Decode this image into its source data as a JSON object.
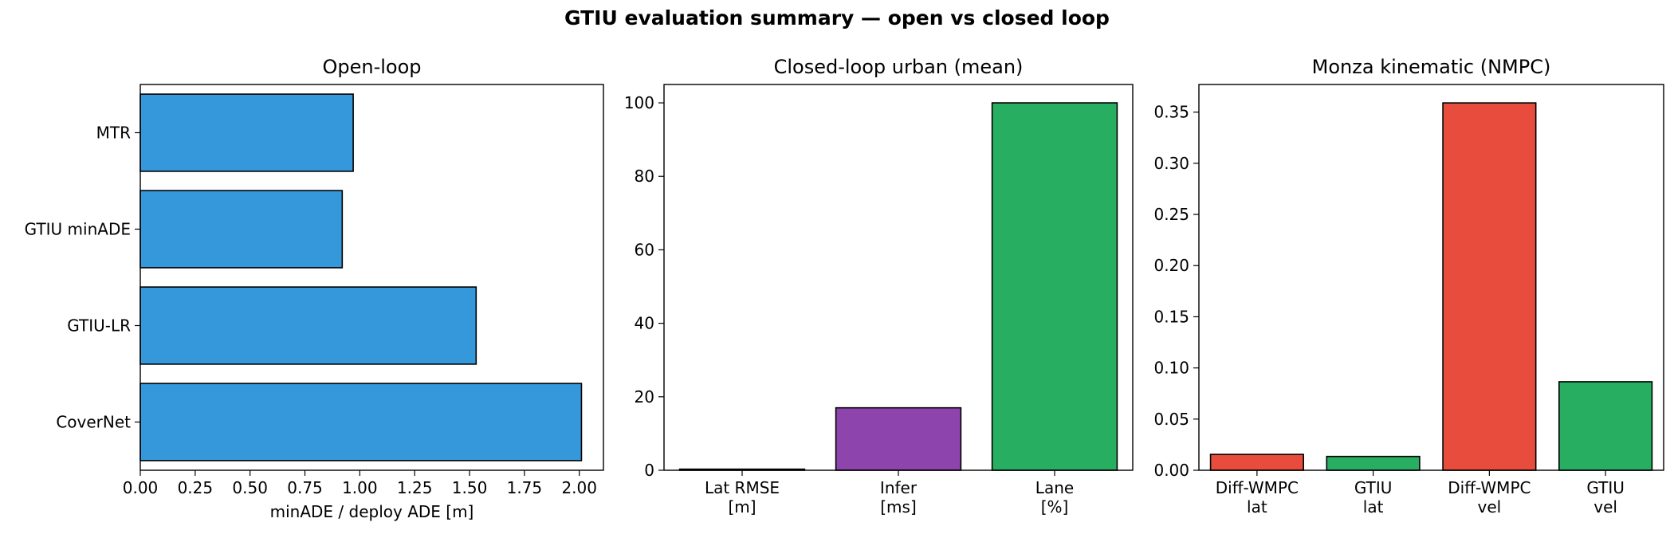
{
  "figure": {
    "suptitle": "GTIU evaluation summary — open vs closed loop"
  },
  "chart_data": [
    {
      "type": "bar",
      "orientation": "horizontal",
      "title": "Open-loop",
      "xlabel": "minADE / deploy ADE [m]",
      "ylabel": "",
      "categories": [
        "MTR",
        "GTIU minADE",
        "GTIU-LR",
        "CoverNet"
      ],
      "values": [
        0.97,
        0.92,
        1.53,
        2.01
      ],
      "colors": [
        "#3498db",
        "#3498db",
        "#3498db",
        "#3498db"
      ],
      "xlim": [
        0,
        2.11
      ],
      "xticks": [
        "0.00",
        "0.25",
        "0.50",
        "0.75",
        "1.00",
        "1.25",
        "1.50",
        "1.75",
        "2.00"
      ],
      "grid": false
    },
    {
      "type": "bar",
      "orientation": "vertical",
      "title": "Closed-loop urban (mean)",
      "xlabel": "",
      "ylabel": "",
      "categories": [
        [
          "Lat RMSE",
          "[m]"
        ],
        [
          "Infer",
          "[ms]"
        ],
        [
          "Lane",
          "[%]"
        ]
      ],
      "values": [
        0.3,
        17,
        100
      ],
      "colors": [
        "#e74c3c",
        "#8e44ad",
        "#27ae60"
      ],
      "ylim": [
        0,
        105
      ],
      "yticks": [
        "0",
        "20",
        "40",
        "60",
        "80",
        "100"
      ],
      "grid": false
    },
    {
      "type": "bar",
      "orientation": "vertical",
      "title": "Monza kinematic (NMPC)",
      "xlabel": "",
      "ylabel": "",
      "categories": [
        [
          "Diff-WMPC",
          "lat"
        ],
        [
          "GTIU",
          "lat"
        ],
        [
          "Diff-WMPC",
          "vel"
        ],
        [
          "GTIU",
          "vel"
        ]
      ],
      "values": [
        0.0155,
        0.0135,
        0.359,
        0.0865
      ],
      "colors": [
        "#e74c3c",
        "#27ae60",
        "#e74c3c",
        "#27ae60"
      ],
      "ylim": [
        0,
        0.377
      ],
      "yticks": [
        "0.00",
        "0.05",
        "0.10",
        "0.15",
        "0.20",
        "0.25",
        "0.30",
        "0.35"
      ],
      "grid": false
    }
  ]
}
